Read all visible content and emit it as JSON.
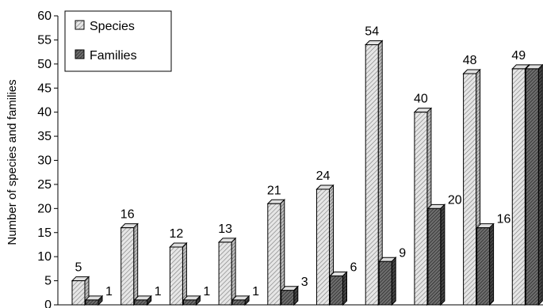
{
  "chart_data": {
    "type": "bar",
    "ylabel": "Number of species and families",
    "ylim": [
      0,
      60
    ],
    "yticks": [
      0,
      5,
      10,
      15,
      20,
      25,
      30,
      35,
      40,
      45,
      50,
      55,
      60
    ],
    "grid": false,
    "legend_position": "top-left",
    "legend": [
      {
        "label": "Species",
        "pattern": "light-hatch"
      },
      {
        "label": "Families",
        "pattern": "dark-hatch"
      }
    ],
    "categories": [
      "",
      "",
      "",
      "",
      "",
      "",
      "",
      "",
      "",
      ""
    ],
    "series": [
      {
        "name": "Species",
        "values": [
          5,
          16,
          12,
          13,
          21,
          24,
          54,
          40,
          48,
          49
        ],
        "color": "#cfcfcf"
      },
      {
        "name": "Families",
        "values": [
          1,
          1,
          1,
          1,
          3,
          6,
          9,
          20,
          16,
          49
        ],
        "color": "#555555"
      }
    ]
  }
}
